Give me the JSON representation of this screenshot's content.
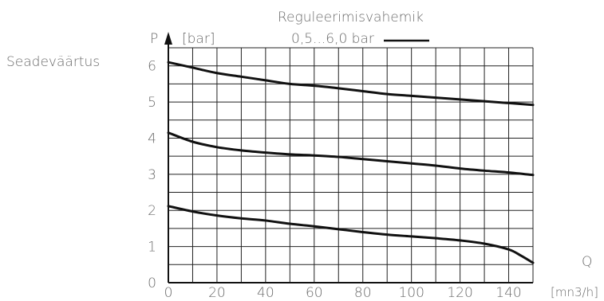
{
  "chart_data": {
    "type": "line",
    "title": "Reguleerimisvahemik",
    "side_label": "Seadeväärtus",
    "xlabel": "Q",
    "xunit": "[mn3/h]",
    "ylabel": "P",
    "yunit": "[bar]",
    "legend": {
      "text": "0,5...6,0 bar",
      "position": "top"
    },
    "xlim": [
      0,
      150
    ],
    "ylim": [
      0,
      6.5
    ],
    "x_ticks": [
      0,
      20,
      40,
      60,
      80,
      100,
      120,
      140
    ],
    "y_ticks": [
      0,
      1,
      2,
      3,
      4,
      5,
      6
    ],
    "grid": true,
    "series": [
      {
        "points": [
          [
            0,
            6.1
          ],
          [
            10,
            5.95
          ],
          [
            20,
            5.8
          ],
          [
            30,
            5.7
          ],
          [
            40,
            5.6
          ],
          [
            50,
            5.5
          ],
          [
            60,
            5.45
          ],
          [
            70,
            5.38
          ],
          [
            80,
            5.3
          ],
          [
            90,
            5.22
          ],
          [
            100,
            5.17
          ],
          [
            110,
            5.12
          ],
          [
            120,
            5.07
          ],
          [
            130,
            5.02
          ],
          [
            140,
            4.97
          ],
          [
            150,
            4.92
          ]
        ]
      },
      {
        "points": [
          [
            0,
            4.15
          ],
          [
            10,
            3.9
          ],
          [
            20,
            3.75
          ],
          [
            30,
            3.66
          ],
          [
            40,
            3.6
          ],
          [
            50,
            3.55
          ],
          [
            60,
            3.52
          ],
          [
            70,
            3.48
          ],
          [
            80,
            3.42
          ],
          [
            90,
            3.36
          ],
          [
            100,
            3.3
          ],
          [
            110,
            3.24
          ],
          [
            120,
            3.16
          ],
          [
            130,
            3.1
          ],
          [
            140,
            3.05
          ],
          [
            150,
            2.98
          ]
        ]
      },
      {
        "points": [
          [
            0,
            2.12
          ],
          [
            10,
            1.97
          ],
          [
            20,
            1.86
          ],
          [
            30,
            1.78
          ],
          [
            40,
            1.72
          ],
          [
            50,
            1.63
          ],
          [
            60,
            1.56
          ],
          [
            70,
            1.48
          ],
          [
            80,
            1.4
          ],
          [
            90,
            1.33
          ],
          [
            100,
            1.28
          ],
          [
            110,
            1.23
          ],
          [
            120,
            1.17
          ],
          [
            130,
            1.08
          ],
          [
            140,
            0.92
          ],
          [
            145,
            0.75
          ],
          [
            150,
            0.55
          ]
        ]
      }
    ]
  }
}
